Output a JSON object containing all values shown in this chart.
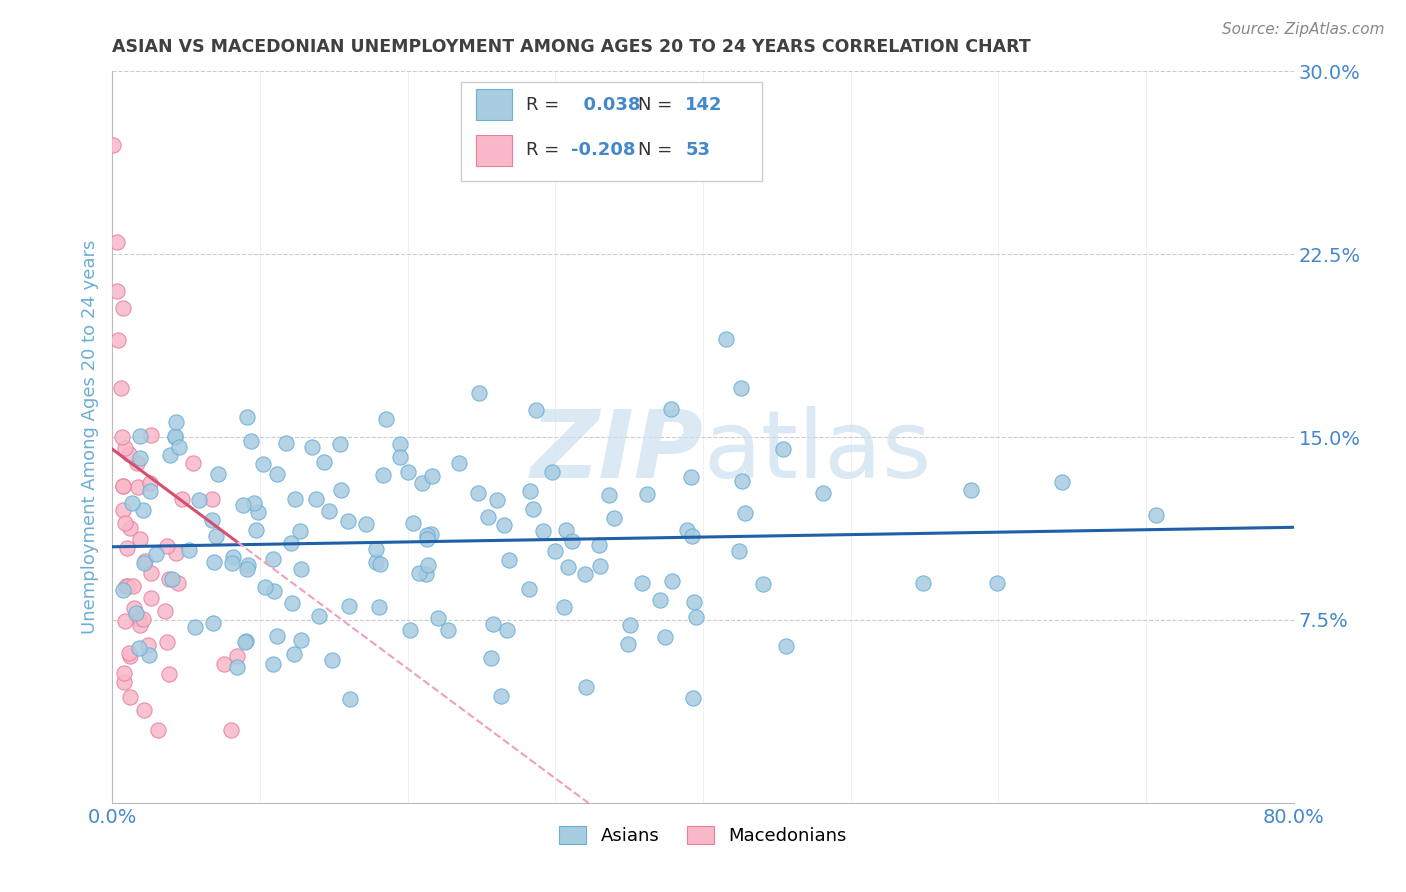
{
  "title": "ASIAN VS MACEDONIAN UNEMPLOYMENT AMONG AGES 20 TO 24 YEARS CORRELATION CHART",
  "source": "Source: ZipAtlas.com",
  "ylabel": "Unemployment Among Ages 20 to 24 years",
  "xlim": [
    0.0,
    0.8
  ],
  "ylim": [
    0.0,
    0.3
  ],
  "xticks": [
    0.0,
    0.1,
    0.2,
    0.3,
    0.4,
    0.5,
    0.6,
    0.7,
    0.8
  ],
  "yticks": [
    0.0,
    0.075,
    0.15,
    0.225,
    0.3
  ],
  "asian_R": 0.038,
  "asian_N": 142,
  "mace_R": -0.208,
  "mace_N": 53,
  "asian_color": "#a8cce0",
  "asian_edge_color": "#6baed6",
  "mace_color": "#f9b8c8",
  "mace_edge_color": "#e87fa0",
  "asian_trend_color": "#2060a8",
  "mace_trend_color_solid": "#d45070",
  "mace_trend_color_dashed": "#f0a0b8",
  "watermark_color": "#cde0f0",
  "legend_asian_label": "Asians",
  "legend_mace_label": "Macedonians",
  "title_color": "#404040",
  "tick_label_color": "#4488cc",
  "grid_color": "#cccccc",
  "ylabel_color": "#6baed6",
  "source_color": "#888888"
}
